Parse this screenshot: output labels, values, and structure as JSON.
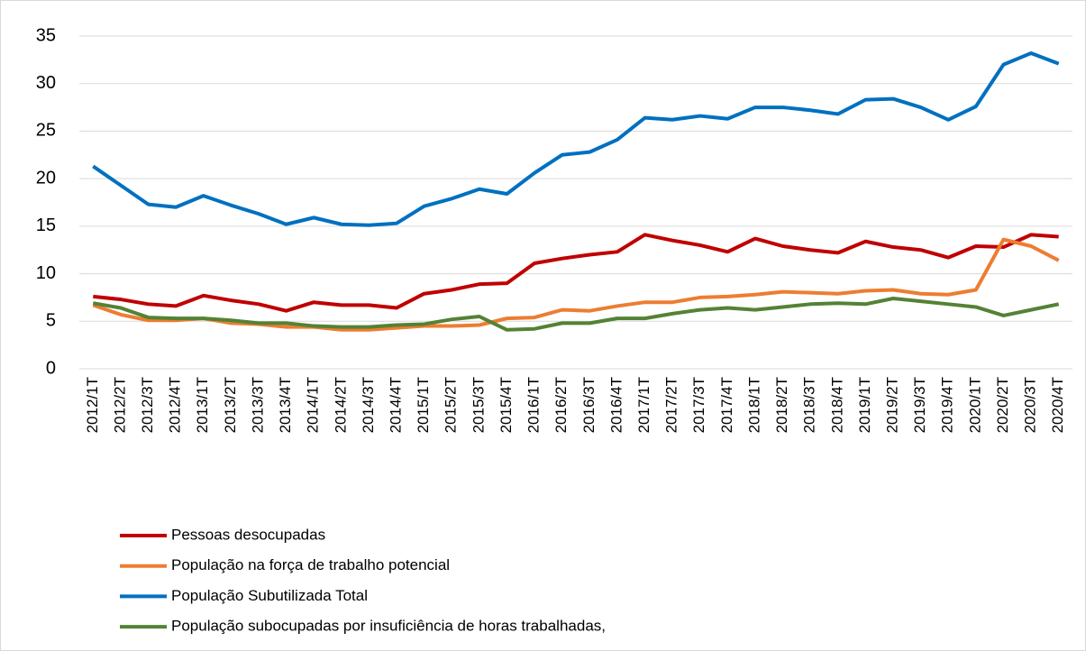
{
  "chart_data": {
    "type": "line",
    "categories": [
      "2012/1T",
      "2012/2T",
      "2012/3T",
      "2012/4T",
      "2013/1T",
      "2013/2T",
      "2013/3T",
      "2013/4T",
      "2014/1T",
      "2014/2T",
      "2014/3T",
      "2014/4T",
      "2015/1T",
      "2015/2T",
      "2015/3T",
      "2015/4T",
      "2016/1T",
      "2016/2T",
      "2016/3T",
      "2016/4T",
      "2017/1T",
      "2017/2T",
      "2017/3T",
      "2017/4T",
      "2018/1T",
      "2018/2T",
      "2018/3T",
      "2018/4T",
      "2019/1T",
      "2019/2T",
      "2019/3T",
      "2019/4T",
      "2020/1T",
      "2020/2T",
      "2020/3T",
      "2020/4T"
    ],
    "series": [
      {
        "name": "Pessoas desocupadas",
        "color": "#c00000",
        "values": [
          7.6,
          7.3,
          6.8,
          6.6,
          7.7,
          7.2,
          6.8,
          6.1,
          7.0,
          6.7,
          6.7,
          6.4,
          7.9,
          8.3,
          8.9,
          9.0,
          11.1,
          11.6,
          12.0,
          12.3,
          14.1,
          13.5,
          13.0,
          12.3,
          13.7,
          12.9,
          12.5,
          12.2,
          13.4,
          12.8,
          12.5,
          11.7,
          12.9,
          12.8,
          14.1,
          13.9
        ]
      },
      {
        "name": "População na força de trabalho potencial",
        "color": "#ed7d31",
        "values": [
          6.7,
          5.7,
          5.1,
          5.1,
          5.3,
          4.8,
          4.7,
          4.4,
          4.4,
          4.1,
          4.1,
          4.3,
          4.5,
          4.5,
          4.6,
          5.3,
          5.4,
          6.2,
          6.1,
          6.6,
          7.0,
          7.0,
          7.5,
          7.6,
          7.8,
          8.1,
          8.0,
          7.9,
          8.2,
          8.3,
          7.9,
          7.8,
          8.3,
          13.6,
          12.9,
          11.4
        ]
      },
      {
        "name": "População Subutilizada Total",
        "color": "#0070c0",
        "values": [
          21.3,
          19.3,
          17.3,
          17.0,
          18.2,
          17.2,
          16.3,
          15.2,
          15.9,
          15.2,
          15.1,
          15.3,
          17.1,
          17.9,
          18.9,
          18.4,
          20.6,
          22.5,
          22.8,
          24.1,
          26.4,
          26.2,
          26.6,
          26.3,
          27.5,
          27.5,
          27.2,
          26.8,
          28.3,
          28.4,
          27.5,
          26.2,
          27.6,
          32.0,
          33.2,
          32.1
        ]
      },
      {
        "name": "População subocupadas por insuficiência de horas trabalhadas,",
        "color": "#548235",
        "values": [
          6.9,
          6.4,
          5.4,
          5.3,
          5.3,
          5.1,
          4.8,
          4.8,
          4.5,
          4.4,
          4.4,
          4.6,
          4.7,
          5.2,
          5.5,
          4.1,
          4.2,
          4.8,
          4.8,
          5.3,
          5.3,
          5.8,
          6.2,
          6.4,
          6.2,
          6.5,
          6.8,
          6.9,
          6.8,
          7.4,
          7.1,
          6.8,
          6.5,
          5.6,
          6.2,
          6.8
        ]
      }
    ],
    "ylim": [
      0,
      35
    ],
    "yticks": [
      0,
      5,
      10,
      15,
      20,
      25,
      30,
      35
    ],
    "grid": true
  }
}
